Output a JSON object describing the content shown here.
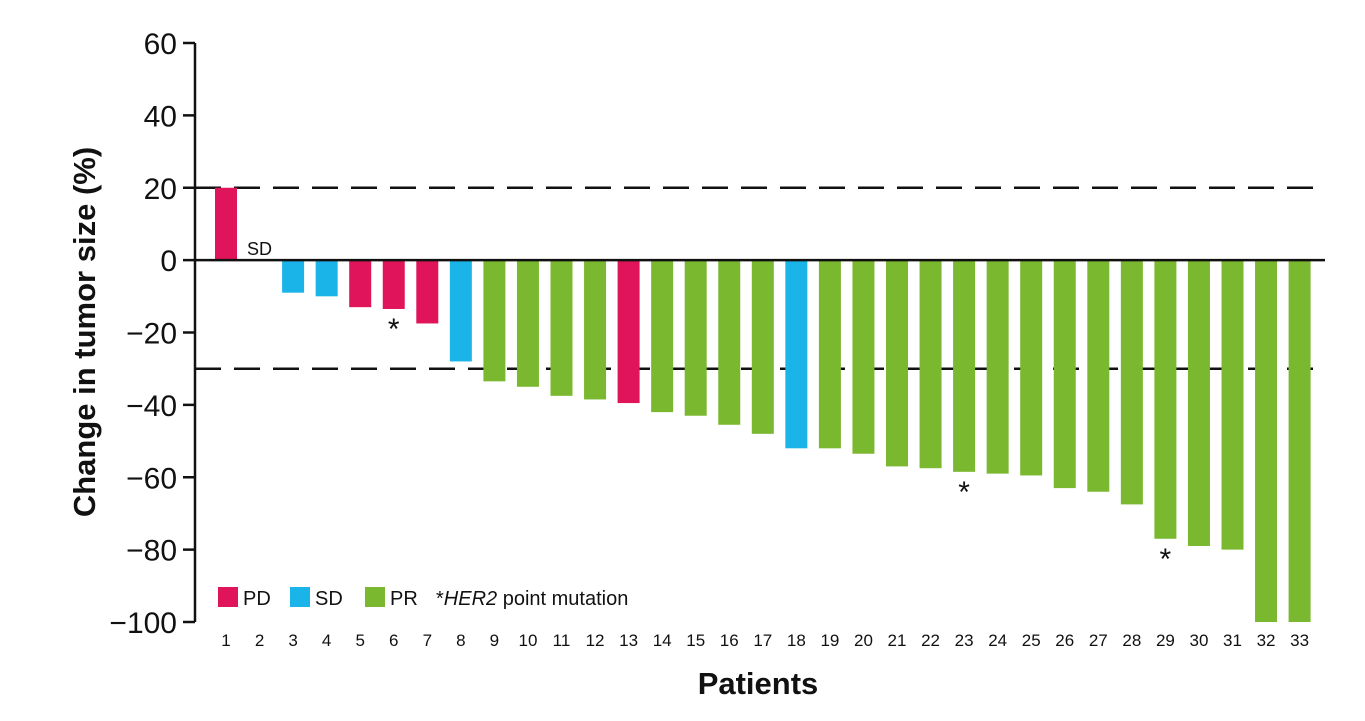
{
  "chart_data": {
    "type": "bar",
    "xlabel": "Patients",
    "ylabel": "Change in tumor size (%)",
    "ylim": [
      -100,
      60
    ],
    "yticks": [
      60,
      40,
      20,
      0,
      -20,
      -40,
      -60,
      -80,
      -100
    ],
    "ytick_labels": [
      "60",
      "40",
      "20",
      "0",
      "−20",
      "−40",
      "−60",
      "−80",
      "−100"
    ],
    "categories": [
      "1",
      "2",
      "3",
      "4",
      "5",
      "6",
      "7",
      "8",
      "9",
      "10",
      "11",
      "12",
      "13",
      "14",
      "15",
      "16",
      "17",
      "18",
      "19",
      "20",
      "21",
      "22",
      "23",
      "24",
      "25",
      "26",
      "27",
      "28",
      "29",
      "30",
      "31",
      "32",
      "33"
    ],
    "values": [
      20,
      0,
      -9,
      -10,
      -13,
      -13.5,
      -17.5,
      -28,
      -33.5,
      -35,
      -37.5,
      -38.5,
      -39.5,
      -42,
      -43,
      -45.5,
      -48,
      -52,
      -52,
      -53.5,
      -57,
      -57.5,
      -58.5,
      -59,
      -59.5,
      -63,
      -64,
      -67.5,
      -77,
      -79,
      -80,
      -100,
      -100
    ],
    "response": [
      "PD",
      "SD",
      "SD",
      "SD",
      "PD",
      "PD",
      "PD",
      "SD",
      "PR",
      "PR",
      "PR",
      "PR",
      "PD",
      "PR",
      "PR",
      "PR",
      "PR",
      "SD",
      "PR",
      "PR",
      "PR",
      "PR",
      "PR",
      "PR",
      "PR",
      "PR",
      "PR",
      "PR",
      "PR",
      "PR",
      "PR",
      "PR",
      "PR"
    ],
    "colors": {
      "PD": "#e0145a",
      "SD": "#1ab4e8",
      "PR": "#7ab830"
    },
    "reference_lines": [
      20,
      -30
    ],
    "zero_label": {
      "patient": "2",
      "text": "SD"
    },
    "her2_marked_patients": [
      "6",
      "23",
      "29"
    ],
    "star_symbol": "*",
    "legend": {
      "placement": "bottom-left",
      "items": [
        {
          "label": "PD",
          "key": "PD"
        },
        {
          "label": "SD",
          "key": "SD"
        },
        {
          "label": "PR",
          "key": "PR"
        }
      ],
      "footnote_star": "*",
      "footnote_gene": "HER2",
      "footnote_rest": " point mutation"
    }
  }
}
